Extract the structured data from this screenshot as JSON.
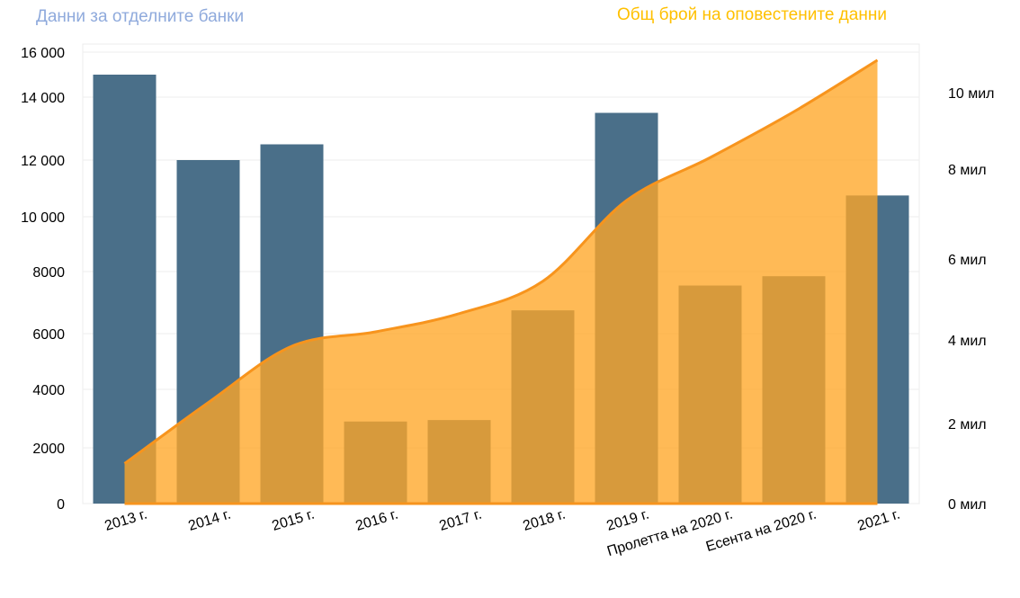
{
  "chart_data": {
    "type": "bar+area",
    "categories": [
      "2013 г.",
      "2014 г.",
      "2015 г.",
      "2016 г.",
      "2017 г.",
      "2018 г.",
      "2019 г.",
      "Пролетта на 2020 г.",
      "Есента на 2020 г.",
      "2021 г."
    ],
    "series": [
      {
        "name": "Данни за отделните банки",
        "type": "bar",
        "axis": "left",
        "color": "#4a6f89",
        "values": [
          15000,
          12000,
          12500,
          2900,
          2950,
          6750,
          13500,
          7550,
          7850,
          10750
        ]
      },
      {
        "name": "Общ брой на оповестените данни",
        "type": "area",
        "axis": "right",
        "color": "#ffa726",
        "line_color": "#f7941d",
        "values": [
          1000000,
          2500000,
          3850000,
          4200000,
          4650000,
          5450000,
          7300000,
          8300000,
          9500000,
          10850000
        ]
      }
    ],
    "y_left": {
      "ticks": [
        0,
        2000,
        4000,
        6000,
        8000,
        10000,
        12000,
        14000,
        16000
      ],
      "tick_labels": [
        "0",
        "2000",
        "4000",
        "6000",
        "8000",
        "10 000",
        "12 000",
        "14 000",
        "16 000"
      ]
    },
    "y_right": {
      "ticks": [
        0,
        2000000,
        4000000,
        6000000,
        8000000,
        10000000
      ],
      "tick_labels": [
        "0 мил",
        "2 мил",
        "4 мил",
        "6 мил",
        "8 мил",
        "10 мил"
      ]
    },
    "grid": true,
    "legend": "top"
  }
}
